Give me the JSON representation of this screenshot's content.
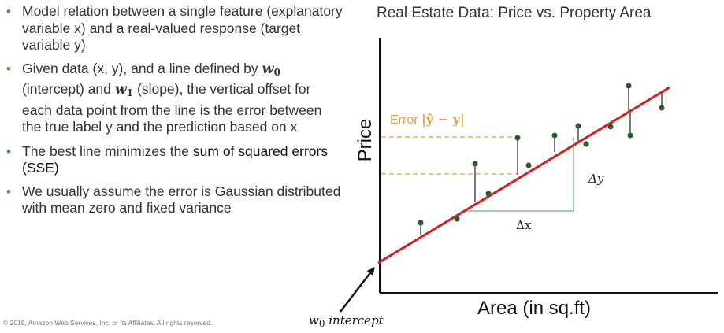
{
  "bullets": {
    "b1": "Model relation between a single feature (explanatory variable x) and a real-valued response (target variable y)",
    "b2_a": "Given data (x, y), and a line defined by",
    "b2_w0": "w",
    "b2_w0_sub": "0",
    "b2_b": " (intercept) and ",
    "b2_w1": "w",
    "b2_w1_sub": "1",
    "b2_c": " (slope), the vertical offset for each data point from the line is the error between the true label y and the prediction based on x",
    "b3_a": "The best line minimizes the ",
    "b3_bold": "sum of squared errors (SSE)",
    "b4": "We usually assume the error is Gaussian distributed with mean zero and fixed variance"
  },
  "copyright": "© 2018, Amazon Web Services, Inc. or its Affiliates. All rights reserved.",
  "chart": {
    "title": "Real Estate Data: Price vs. Property Area",
    "xlabel": "Area (in sq.ft)",
    "ylabel": "Price",
    "error_label_prefix": "Error ",
    "error_label_math": "|ŷ − y|",
    "dy_label": "Δy",
    "dx_label": "Δx",
    "intercept_label": "w",
    "intercept_sub": "0",
    "intercept_text": " intercept",
    "colors": {
      "line": "#d91e1e",
      "points": "#2d5a2d",
      "error_guides": "#f0b040",
      "slope_triangle": "#7fc27f",
      "axes": "#111111"
    }
  },
  "chart_data": {
    "type": "scatter",
    "title": "Real Estate Data: Price vs. Property Area",
    "xlabel": "Area (in sq.ft)",
    "ylabel": "Price",
    "regression_line": true,
    "points_count": 12
  }
}
